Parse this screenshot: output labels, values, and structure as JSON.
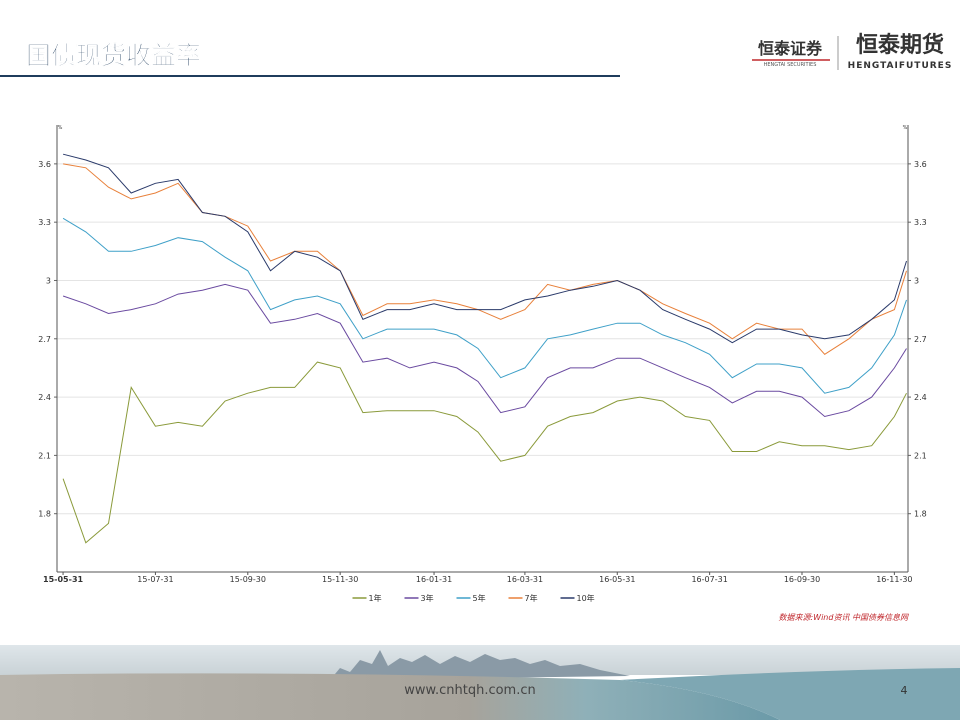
{
  "header": {
    "title": "国债现货收益率",
    "logo1": {
      "name": "恒泰证券",
      "sub": "HENGTAI SECURITIES"
    },
    "logo2": {
      "name": "恒泰期货",
      "sub": "HENGTAIFUTURES"
    }
  },
  "chart_data": {
    "type": "line",
    "ylabel": "%",
    "y2label": "%",
    "x": [
      "15-05-31",
      "15-06-15",
      "15-06-30",
      "15-07-15",
      "15-07-31",
      "15-08-15",
      "15-08-31",
      "15-09-15",
      "15-09-30",
      "15-10-15",
      "15-10-31",
      "15-11-15",
      "15-11-30",
      "15-12-15",
      "15-12-31",
      "16-01-15",
      "16-01-31",
      "16-02-15",
      "16-02-29",
      "16-03-15",
      "16-03-31",
      "16-04-15",
      "16-04-30",
      "16-05-15",
      "16-05-31",
      "16-06-15",
      "16-06-30",
      "16-07-15",
      "16-07-31",
      "16-08-15",
      "16-08-31",
      "16-09-15",
      "16-09-30",
      "16-10-15",
      "16-10-31",
      "16-11-15",
      "16-11-30",
      "16-12-08"
    ],
    "xlim": [
      "15-05-27",
      "16-12-09"
    ],
    "xticks": [
      "15-05-31",
      "15-07-31",
      "15-09-30",
      "15-11-30",
      "16-01-31",
      "16-03-31",
      "16-05-31",
      "16-07-31",
      "16-09-30",
      "16-11-30"
    ],
    "ylim": [
      1.5,
      3.8
    ],
    "yticks": [
      1.8,
      2.1,
      2.4,
      2.7,
      3.0,
      3.3,
      3.6
    ],
    "y2lim": [
      1.5,
      3.8
    ],
    "y2ticks": [
      1.8,
      2.1,
      2.4,
      2.7,
      3.0,
      3.3,
      3.6
    ],
    "grid": true,
    "legend": "bottom",
    "series": [
      {
        "name": "1年",
        "color": "#8a9a3a",
        "values": [
          1.98,
          1.65,
          1.75,
          2.45,
          2.25,
          2.27,
          2.25,
          2.38,
          2.42,
          2.45,
          2.45,
          2.58,
          2.55,
          2.32,
          2.33,
          2.33,
          2.33,
          2.3,
          2.22,
          2.07,
          2.1,
          2.25,
          2.3,
          2.32,
          2.38,
          2.4,
          2.38,
          2.3,
          2.28,
          2.12,
          2.12,
          2.17,
          2.15,
          2.15,
          2.13,
          2.15,
          2.3,
          2.42
        ]
      },
      {
        "name": "3年",
        "color": "#6a4aa0",
        "values": [
          2.92,
          2.88,
          2.83,
          2.85,
          2.88,
          2.93,
          2.95,
          2.98,
          2.95,
          2.78,
          2.8,
          2.83,
          2.78,
          2.58,
          2.6,
          2.55,
          2.58,
          2.55,
          2.48,
          2.32,
          2.35,
          2.5,
          2.55,
          2.55,
          2.6,
          2.6,
          2.55,
          2.5,
          2.45,
          2.37,
          2.43,
          2.43,
          2.4,
          2.3,
          2.33,
          2.4,
          2.55,
          2.65
        ]
      },
      {
        "name": "5年",
        "color": "#3fa0c8",
        "values": [
          3.32,
          3.25,
          3.15,
          3.15,
          3.18,
          3.22,
          3.2,
          3.12,
          3.05,
          2.85,
          2.9,
          2.92,
          2.88,
          2.7,
          2.75,
          2.75,
          2.75,
          2.72,
          2.65,
          2.5,
          2.55,
          2.7,
          2.72,
          2.75,
          2.78,
          2.78,
          2.72,
          2.68,
          2.62,
          2.5,
          2.57,
          2.57,
          2.55,
          2.42,
          2.45,
          2.55,
          2.72,
          2.9
        ]
      },
      {
        "name": "7年",
        "color": "#e8803a",
        "values": [
          3.6,
          3.58,
          3.48,
          3.42,
          3.45,
          3.5,
          3.35,
          3.33,
          3.28,
          3.1,
          3.15,
          3.15,
          3.05,
          2.82,
          2.88,
          2.88,
          2.9,
          2.88,
          2.85,
          2.8,
          2.85,
          2.98,
          2.95,
          2.98,
          3.0,
          2.95,
          2.88,
          2.83,
          2.78,
          2.7,
          2.78,
          2.75,
          2.75,
          2.62,
          2.7,
          2.8,
          2.85,
          3.05
        ]
      },
      {
        "name": "10年",
        "color": "#2a3a6a",
        "values": [
          3.65,
          3.62,
          3.58,
          3.45,
          3.5,
          3.52,
          3.35,
          3.33,
          3.25,
          3.05,
          3.15,
          3.12,
          3.05,
          2.8,
          2.85,
          2.85,
          2.88,
          2.85,
          2.85,
          2.85,
          2.9,
          2.92,
          2.95,
          2.97,
          3.0,
          2.95,
          2.85,
          2.8,
          2.75,
          2.68,
          2.75,
          2.75,
          2.72,
          2.7,
          2.72,
          2.8,
          2.9,
          3.1
        ]
      }
    ],
    "source": "数据来源:Wind资讯 中国债券信息网"
  },
  "footer": {
    "url": "www.cnhtqh.com.cn",
    "page": "4"
  }
}
